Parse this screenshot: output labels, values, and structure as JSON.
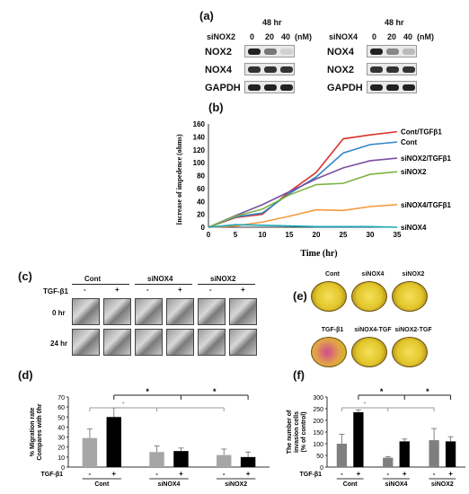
{
  "panels": {
    "a": "(a)",
    "b": "(b)",
    "c": "(c)",
    "d": "(d)",
    "e": "(e)",
    "f": "(f)"
  },
  "blot_left": {
    "time": "48 hr",
    "treatment": "siNOX2",
    "doses": [
      "0",
      "20",
      "40"
    ],
    "unit": "(nM)",
    "rows": [
      "NOX2",
      "NOX4",
      "GAPDH"
    ]
  },
  "blot_right": {
    "time": "48 hr",
    "treatment": "siNOX4",
    "doses": [
      "0",
      "20",
      "40"
    ],
    "unit": "(nM)",
    "rows": [
      "NOX4",
      "NOX2",
      "GAPDH"
    ]
  },
  "chart_data": [
    {
      "type": "line",
      "xlabel": "Time (hr)",
      "ylabel": "Increase of impedence (ohms)",
      "x": [
        0,
        5,
        10,
        15,
        20,
        25,
        30,
        35
      ],
      "xlim": [
        0,
        35
      ],
      "ylim": [
        0,
        160
      ],
      "yticks": [
        0,
        20,
        40,
        60,
        80,
        100,
        120,
        140,
        160
      ],
      "grid": false,
      "series": [
        {
          "name": "Cont/TGFβ1",
          "color": "#d9342b",
          "values": [
            0,
            15,
            20,
            55,
            85,
            137,
            143,
            148
          ]
        },
        {
          "name": "Cont",
          "color": "#2f86c6",
          "values": [
            0,
            16,
            22,
            52,
            78,
            115,
            128,
            132
          ]
        },
        {
          "name": "siNOX2/TGFβ1",
          "color": "#7b4fa0",
          "values": [
            0,
            18,
            35,
            55,
            75,
            92,
            103,
            107
          ]
        },
        {
          "name": "siNOX2",
          "color": "#7cb342",
          "values": [
            0,
            17,
            28,
            50,
            66,
            68,
            82,
            86
          ]
        },
        {
          "name": "siNOX4/TGFβ1",
          "color": "#f39a3c",
          "values": [
            0,
            2,
            8,
            17,
            27,
            26,
            32,
            35
          ]
        },
        {
          "name": "siNOX4",
          "color": "#17a9b8",
          "values": [
            0,
            4,
            3,
            2,
            1,
            1,
            1,
            0
          ]
        }
      ]
    },
    {
      "type": "bar",
      "ylabel": "% Migration rate\nCompares with 0hr",
      "ylim": [
        0,
        70
      ],
      "yticks": [
        0,
        10,
        20,
        30,
        40,
        50,
        60,
        70
      ],
      "values": [
        29,
        50,
        15,
        16,
        12,
        10
      ],
      "errors": [
        9,
        9,
        6,
        3,
        6,
        5
      ],
      "colors": [
        "#a6a6a6",
        "#000000",
        "#a6a6a6",
        "#000000",
        "#a6a6a6",
        "#000000"
      ]
    },
    {
      "type": "bar",
      "ylabel": "The number of\ninvasion cells\n(% of control)",
      "ylim": [
        0,
        300
      ],
      "yticks": [
        0,
        50,
        100,
        150,
        200,
        250,
        300
      ],
      "values": [
        100,
        235,
        40,
        110,
        115,
        110
      ],
      "errors": [
        40,
        10,
        5,
        10,
        50,
        20
      ],
      "colors": [
        "#7f7f7f",
        "#000000",
        "#7f7f7f",
        "#000000",
        "#7f7f7f",
        "#000000"
      ]
    }
  ],
  "scratch": {
    "treatment": "TGF-β1",
    "groups": [
      "Cont",
      "siNOX4",
      "siNOX2"
    ],
    "signs": [
      "-",
      "+"
    ],
    "rows": [
      "0 hr",
      "24 hr"
    ]
  },
  "invasion_images": {
    "top": [
      "Cont",
      "siNOX4",
      "siNOX2"
    ],
    "bottom": [
      "TGF-β1",
      "siNOX4-TGF",
      "siNOX2-TGF"
    ]
  },
  "bar_common": {
    "treatment": "TGF-β1",
    "signs": [
      "-",
      "+",
      "-",
      "+",
      "-",
      "+"
    ],
    "groups": [
      "Cont",
      "siNOX4",
      "siNOX2"
    ],
    "sig": "*"
  }
}
